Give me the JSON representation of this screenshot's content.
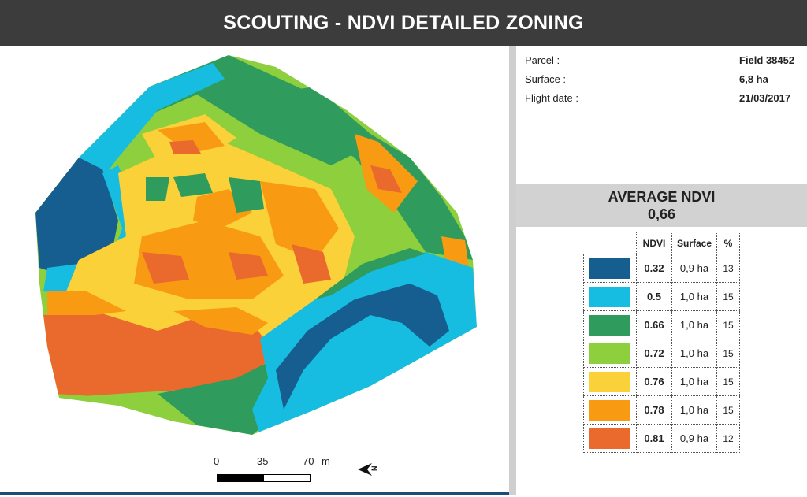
{
  "header": {
    "title": "SCOUTING - NDVI DETAILED ZONING"
  },
  "info": {
    "parcel_label": "Parcel :",
    "parcel_value": "Field 38452",
    "surface_label": "Surface :",
    "surface_value": "6,8 ha",
    "flight_label": "Flight date :",
    "flight_value": "21/03/2017"
  },
  "average": {
    "title": "AVERAGE NDVI",
    "value": "0,66"
  },
  "table": {
    "headers": {
      "ndvi": "NDVI",
      "surface": "Surface",
      "pct": "%"
    },
    "rows": [
      {
        "color": "#155e8f",
        "ndvi": "0.32",
        "surface": "0,9 ha",
        "pct": "13"
      },
      {
        "color": "#17bde0",
        "ndvi": "0.5",
        "surface": "1,0 ha",
        "pct": "15"
      },
      {
        "color": "#2f9b5c",
        "ndvi": "0.66",
        "surface": "1,0 ha",
        "pct": "15"
      },
      {
        "color": "#8ecf3d",
        "ndvi": "0.72",
        "surface": "1,0 ha",
        "pct": "15"
      },
      {
        "color": "#fbd13a",
        "ndvi": "0.76",
        "surface": "1,0 ha",
        "pct": "15"
      },
      {
        "color": "#f89a12",
        "ndvi": "0.78",
        "surface": "1,0 ha",
        "pct": "15"
      },
      {
        "color": "#ea6a2e",
        "ndvi": "0.81",
        "surface": "0,9 ha",
        "pct": "12"
      }
    ]
  },
  "scale": {
    "t0": "0",
    "t1": "35",
    "t2": "70",
    "unit": "m"
  },
  "north_icon": "north-arrow-icon"
}
